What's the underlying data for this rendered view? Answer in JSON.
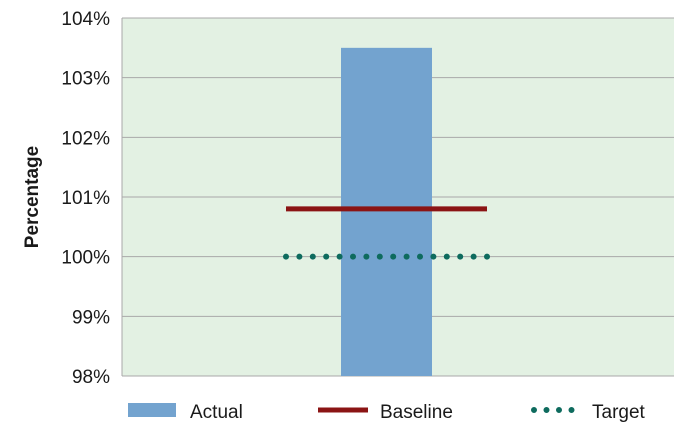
{
  "chart_data": {
    "type": "bar",
    "ylabel": "Percentage",
    "ylim": [
      98,
      104
    ],
    "yticks": [
      98,
      99,
      100,
      101,
      102,
      103,
      104
    ],
    "ytick_labels": [
      "98%",
      "99%",
      "100%",
      "101%",
      "102%",
      "103%",
      "104%"
    ],
    "grid": true,
    "bars": [
      {
        "name": "Actual",
        "value": 103.5
      }
    ],
    "reference_lines": [
      {
        "name": "Baseline",
        "value": 100.8,
        "style": "solid"
      },
      {
        "name": "Target",
        "value": 100.0,
        "style": "dotted"
      }
    ],
    "legend": {
      "placement": "bottom",
      "entries": [
        "Actual",
        "Baseline",
        "Target"
      ]
    },
    "colors": {
      "plot_background": "#e3f1e3",
      "bar": "#73a3cf",
      "baseline": "#8b1414",
      "target": "#0e6b5e",
      "grid": "#a8a8a8"
    }
  }
}
